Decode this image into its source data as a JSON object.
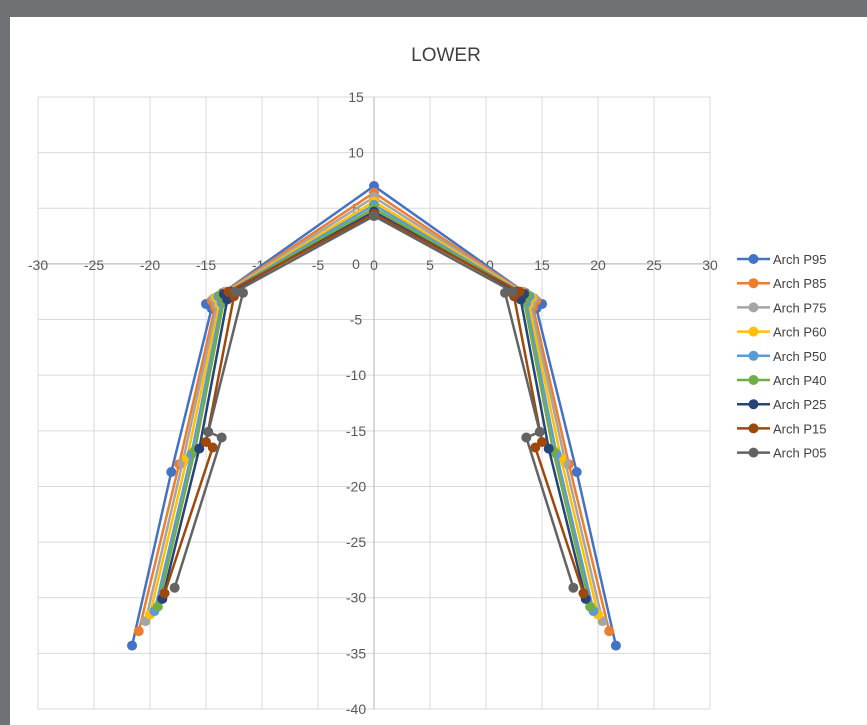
{
  "chart_data": {
    "type": "scatter",
    "title": "LOWER",
    "xlabel": "",
    "ylabel": "",
    "xlim": [
      -30,
      30
    ],
    "ylim": [
      -40,
      15
    ],
    "x_ticks": [
      -30,
      -25,
      -20,
      -15,
      -10,
      -5,
      0,
      5,
      10,
      15,
      20,
      25,
      30
    ],
    "y_ticks": [
      15,
      10,
      5,
      0,
      -5,
      -10,
      -15,
      -20,
      -25,
      -30,
      -35,
      -40
    ],
    "grid": true,
    "legend_position": "right",
    "series": [
      {
        "name": "Arch P95",
        "color": "#4472c4",
        "points": [
          [
            -21.6,
            -34.3
          ],
          [
            -18.1,
            -18.7
          ],
          [
            -14.5,
            -4.0
          ],
          [
            -15.0,
            -3.6
          ],
          [
            -13.5,
            -2.6
          ],
          [
            0,
            7.0
          ],
          [
            13.5,
            -2.6
          ],
          [
            15.0,
            -3.6
          ],
          [
            14.5,
            -4.0
          ],
          [
            18.1,
            -18.7
          ],
          [
            21.6,
            -34.3
          ]
        ]
      },
      {
        "name": "Arch P85",
        "color": "#ed7d31",
        "points": [
          [
            -21.0,
            -33.0
          ],
          [
            -17.4,
            -18.0
          ],
          [
            -14.2,
            -3.9
          ],
          [
            -14.5,
            -3.3
          ],
          [
            -13.3,
            -2.5
          ],
          [
            0,
            6.4
          ],
          [
            13.3,
            -2.5
          ],
          [
            14.5,
            -3.3
          ],
          [
            14.2,
            -3.9
          ],
          [
            17.4,
            -18.0
          ],
          [
            21.0,
            -33.0
          ]
        ]
      },
      {
        "name": "Arch P75",
        "color": "#a5a5a5",
        "points": [
          [
            -20.4,
            -32.1
          ],
          [
            -17.1,
            -17.9
          ],
          [
            -14.0,
            -3.7
          ],
          [
            -14.3,
            -3.1
          ],
          [
            -13.2,
            -2.5
          ],
          [
            0,
            6.0
          ],
          [
            13.2,
            -2.5
          ],
          [
            14.3,
            -3.1
          ],
          [
            14.0,
            -3.7
          ],
          [
            17.1,
            -17.9
          ],
          [
            20.4,
            -32.1
          ]
        ]
      },
      {
        "name": "Arch P60",
        "color": "#ffc000",
        "points": [
          [
            -20.0,
            -31.5
          ],
          [
            -16.7,
            -17.5
          ],
          [
            -13.8,
            -3.6
          ],
          [
            -14.1,
            -3.0
          ],
          [
            -13.1,
            -2.5
          ],
          [
            0,
            5.6
          ],
          [
            13.1,
            -2.5
          ],
          [
            14.1,
            -3.0
          ],
          [
            13.8,
            -3.6
          ],
          [
            16.7,
            -17.5
          ],
          [
            20.0,
            -31.5
          ]
        ]
      },
      {
        "name": "Arch P50",
        "color": "#5b9bd5",
        "points": [
          [
            -19.6,
            -31.2
          ],
          [
            -16.3,
            -17.1
          ],
          [
            -13.6,
            -3.5
          ],
          [
            -13.9,
            -2.9
          ],
          [
            -13.0,
            -2.5
          ],
          [
            0,
            5.3
          ],
          [
            13.0,
            -2.5
          ],
          [
            13.9,
            -2.9
          ],
          [
            13.6,
            -3.5
          ],
          [
            16.3,
            -17.1
          ],
          [
            19.6,
            -31.2
          ]
        ]
      },
      {
        "name": "Arch P40",
        "color": "#70ad47",
        "points": [
          [
            -19.3,
            -30.8
          ],
          [
            -16.0,
            -16.8
          ],
          [
            -13.4,
            -3.3
          ],
          [
            -13.7,
            -2.8
          ],
          [
            -12.9,
            -2.5
          ],
          [
            0,
            5.0
          ],
          [
            12.9,
            -2.5
          ],
          [
            13.7,
            -2.8
          ],
          [
            13.4,
            -3.3
          ],
          [
            16.0,
            -16.8
          ],
          [
            19.3,
            -30.8
          ]
        ]
      },
      {
        "name": "Arch P25",
        "color": "#264478",
        "points": [
          [
            -18.9,
            -30.1
          ],
          [
            -15.6,
            -16.6
          ],
          [
            -13.1,
            -3.2
          ],
          [
            -13.4,
            -2.7
          ],
          [
            -12.8,
            -2.5
          ],
          [
            0,
            4.7
          ],
          [
            12.8,
            -2.5
          ],
          [
            13.4,
            -2.7
          ],
          [
            13.1,
            -3.2
          ],
          [
            15.6,
            -16.6
          ],
          [
            18.9,
            -30.1
          ]
        ]
      },
      {
        "name": "Arch P15",
        "color": "#9e480e",
        "points": [
          [
            -18.7,
            -29.6
          ],
          [
            -14.4,
            -16.5
          ],
          [
            -15.0,
            -16.0
          ],
          [
            -12.5,
            -2.9
          ],
          [
            -13.0,
            -2.5
          ],
          [
            0,
            4.5
          ],
          [
            13.0,
            -2.5
          ],
          [
            12.5,
            -2.9
          ],
          [
            15.0,
            -16.0
          ],
          [
            14.4,
            -16.5
          ],
          [
            18.7,
            -29.6
          ]
        ]
      },
      {
        "name": "Arch P05",
        "color": "#636363",
        "points": [
          [
            -17.8,
            -29.1
          ],
          [
            -13.6,
            -15.6
          ],
          [
            -14.8,
            -15.1
          ],
          [
            -11.7,
            -2.6
          ],
          [
            -12.4,
            -2.5
          ],
          [
            0,
            4.3
          ],
          [
            12.4,
            -2.5
          ],
          [
            11.7,
            -2.6
          ],
          [
            14.8,
            -15.1
          ],
          [
            13.6,
            -15.6
          ],
          [
            17.8,
            -29.1
          ]
        ]
      }
    ]
  }
}
